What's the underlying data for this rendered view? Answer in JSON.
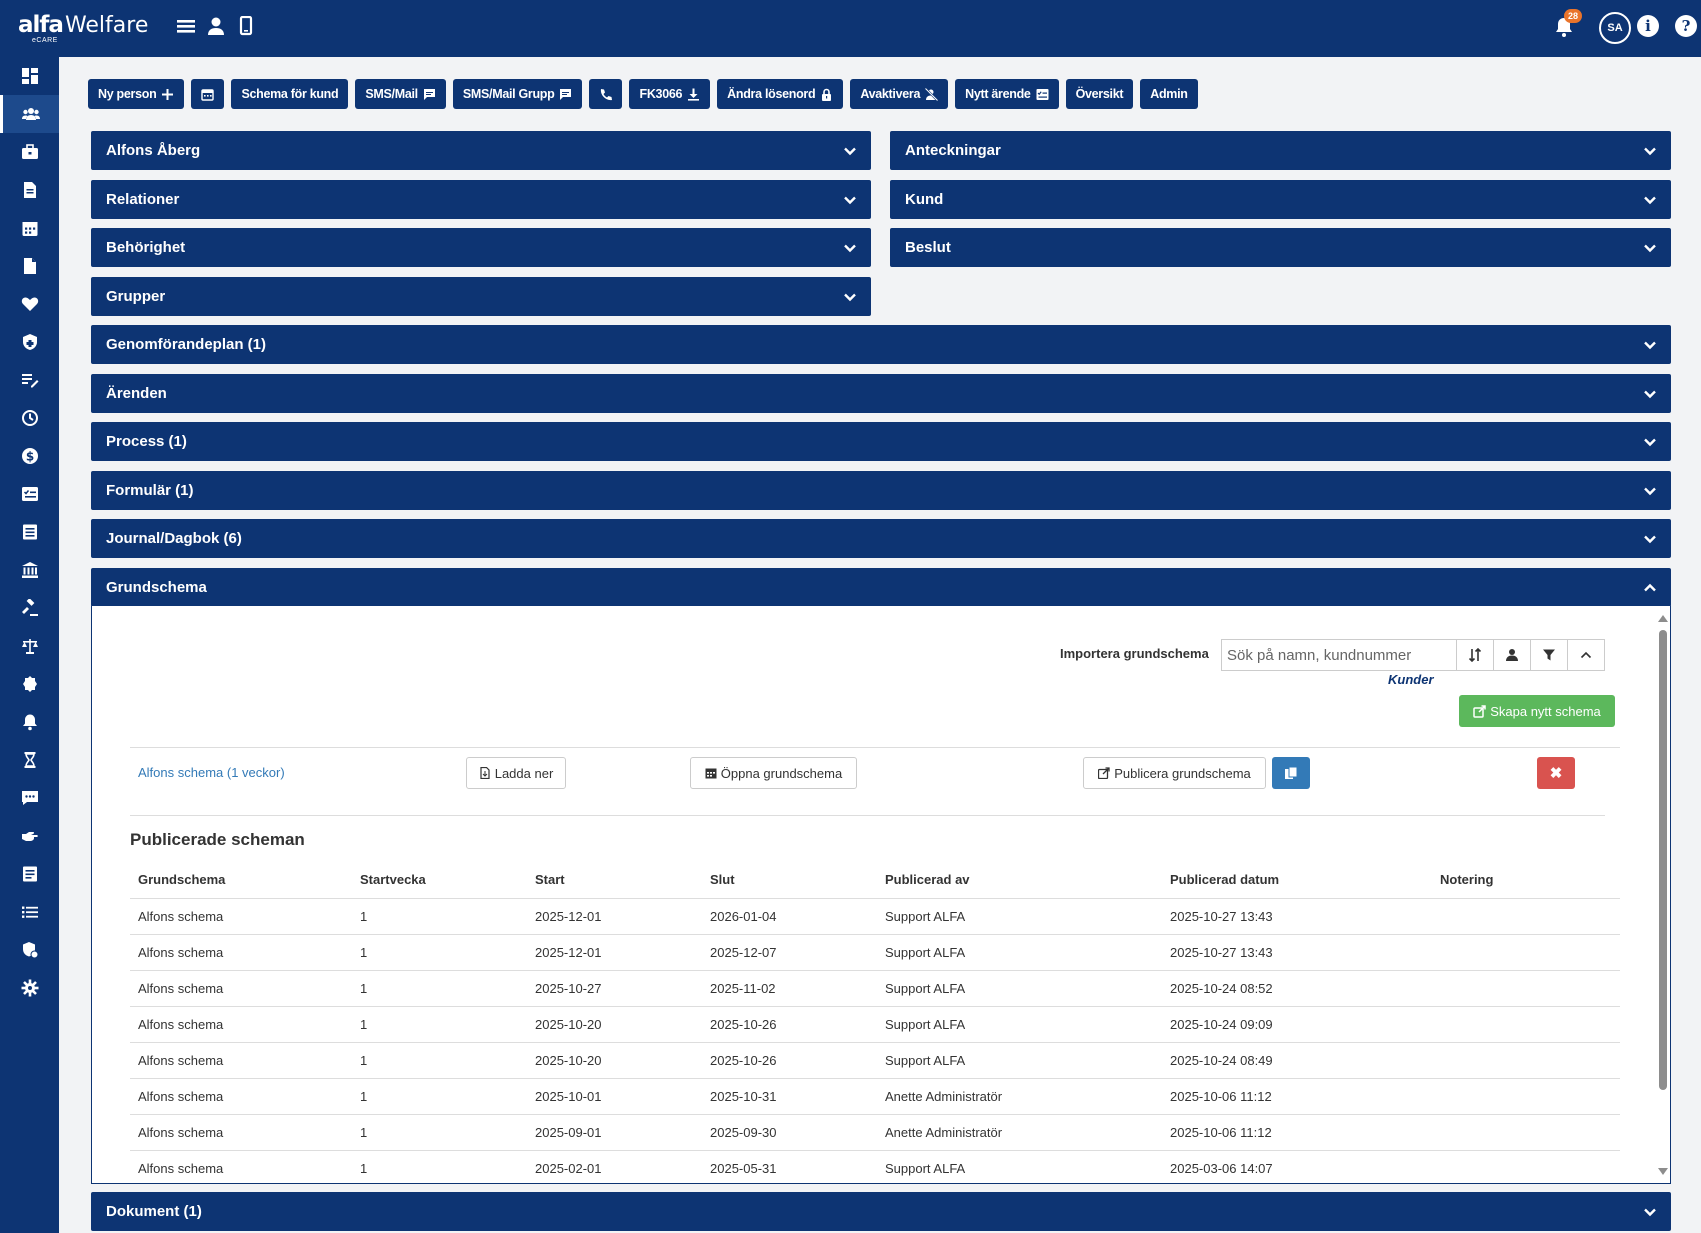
{
  "app": {
    "logo_brand": "alfa",
    "logo_product": "Welfare",
    "logo_sub": "eCARE",
    "notification_count": "28",
    "user_initials": "SA",
    "info_icon": "info-icon",
    "help_icon": "help-icon"
  },
  "toolbar": {
    "buttons": [
      {
        "label": "Ny person",
        "icon": "plus-icon"
      },
      {
        "label": "",
        "icon": "calendar-icon"
      },
      {
        "label": "Schema för kund",
        "icon": ""
      },
      {
        "label": "SMS/Mail",
        "icon": "message-icon"
      },
      {
        "label": "SMS/Mail Grupp",
        "icon": "message-icon"
      },
      {
        "label": "",
        "icon": "phone-icon"
      },
      {
        "label": "FK3066",
        "icon": "download-icon"
      },
      {
        "label": "Ändra lösenord",
        "icon": "lock-icon"
      },
      {
        "label": "Avaktivera",
        "icon": "user-slash-icon"
      },
      {
        "label": "Nytt ärende",
        "icon": "checklist-icon"
      },
      {
        "label": "Översikt",
        "icon": ""
      },
      {
        "label": "Admin",
        "icon": ""
      }
    ]
  },
  "panels": {
    "alfons": "Alfons Åberg",
    "relationer": "Relationer",
    "behorighet": "Behörighet",
    "grupper": "Grupper",
    "anteckningar": "Anteckningar",
    "kund": "Kund",
    "beslut": "Beslut",
    "genomforandeplan": "Genomförandeplan (1)",
    "arenden": "Ärenden",
    "process": "Process (1)",
    "formular": "Formulär (1)",
    "journal": "Journal/Dagbok (6)",
    "grundschema": "Grundschema",
    "dokument": "Dokument (1)"
  },
  "grundschema": {
    "import_label": "Importera grundschema",
    "search_placeholder": "Sök på namn, kundnummer",
    "kunder_label": "Kunder",
    "create_label": "Skapa nytt schema",
    "schedule_link": "Alfons schema (1 veckor)",
    "download_label": "Ladda ner",
    "open_label": "Öppna grundschema",
    "publish_label": "Publicera grundschema",
    "delete_symbol": "✖",
    "published_title": "Publicerade scheman",
    "columns": [
      "Grundschema",
      "Startvecka",
      "Start",
      "Slut",
      "Publicerad av",
      "Publicerad datum",
      "Notering"
    ],
    "rows": [
      [
        "Alfons schema",
        "1",
        "2025-12-01",
        "2026-01-04",
        "Support ALFA",
        "2025-10-27 13:43",
        ""
      ],
      [
        "Alfons schema",
        "1",
        "2025-12-01",
        "2025-12-07",
        "Support ALFA",
        "2025-10-27 13:43",
        ""
      ],
      [
        "Alfons schema",
        "1",
        "2025-10-27",
        "2025-11-02",
        "Support ALFA",
        "2025-10-24 08:52",
        ""
      ],
      [
        "Alfons schema",
        "1",
        "2025-10-20",
        "2025-10-26",
        "Support ALFA",
        "2025-10-24 09:09",
        ""
      ],
      [
        "Alfons schema",
        "1",
        "2025-10-20",
        "2025-10-26",
        "Support ALFA",
        "2025-10-24 08:49",
        ""
      ],
      [
        "Alfons schema",
        "1",
        "2025-10-01",
        "2025-10-31",
        "Anette Administratör",
        "2025-10-06 11:12",
        ""
      ],
      [
        "Alfons schema",
        "1",
        "2025-09-01",
        "2025-09-30",
        "Anette Administratör",
        "2025-10-06 11:12",
        ""
      ],
      [
        "Alfons schema",
        "1",
        "2025-02-01",
        "2025-05-31",
        "Support ALFA",
        "2025-03-06 14:07",
        ""
      ]
    ]
  },
  "sidebar": {
    "items": [
      "dashboard-icon",
      "people-icon",
      "briefcase-icon",
      "document-icon",
      "calendar-icon",
      "file-icon",
      "heart-icon",
      "shield-icon",
      "edit-list-icon",
      "clock-icon",
      "dollar-icon",
      "checklist-icon",
      "list-doc-icon",
      "bank-icon",
      "gavel-icon",
      "scale-icon",
      "badge-icon",
      "bell-icon",
      "hourglass-icon",
      "chat-icon",
      "hand-icon",
      "notes-icon",
      "list-icon",
      "security-icon",
      "gear-icon"
    ]
  },
  "colors": {
    "primary": "#0d3473",
    "success": "#5cb85c",
    "danger": "#d9534f",
    "info": "#337ab7"
  }
}
